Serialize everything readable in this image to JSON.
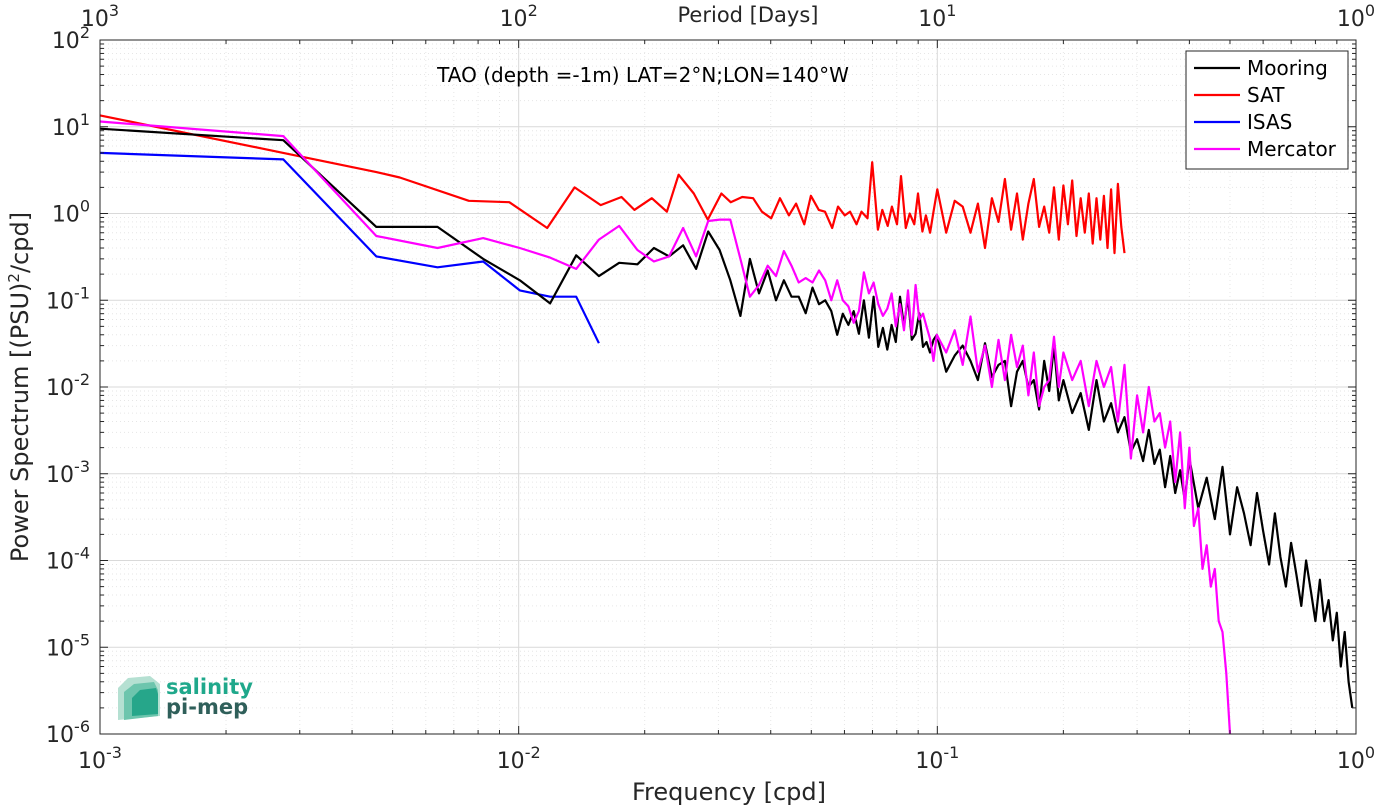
{
  "chart_data": {
    "type": "line",
    "title": "TAO (depth =-1m) LAT=2°N;LON=140°W",
    "xlabel": "Frequency [cpd]",
    "ylabel_main": "Power Spectrum [(PSU)",
    "ylabel_sup": "2",
    "ylabel_tail": "/cpd]",
    "top_xlabel": "Period [Days]",
    "x_scale": "log",
    "y_scale": "log",
    "xlim": [
      0.001,
      1
    ],
    "ylim": [
      1e-06,
      100
    ],
    "grid": true,
    "legend_position": "top-right",
    "x_ticks": [
      {
        "value": 0.001,
        "base": "10",
        "exp": "-3"
      },
      {
        "value": 0.01,
        "base": "10",
        "exp": "-2"
      },
      {
        "value": 0.1,
        "base": "10",
        "exp": "-1"
      },
      {
        "value": 1,
        "base": "10",
        "exp": "0"
      }
    ],
    "y_ticks": [
      {
        "value": 1e-06,
        "base": "10",
        "exp": "-6"
      },
      {
        "value": 1e-05,
        "base": "10",
        "exp": "-5"
      },
      {
        "value": 0.0001,
        "base": "10",
        "exp": "-4"
      },
      {
        "value": 0.001,
        "base": "10",
        "exp": "-3"
      },
      {
        "value": 0.01,
        "base": "10",
        "exp": "-2"
      },
      {
        "value": 0.1,
        "base": "10",
        "exp": "-1"
      },
      {
        "value": 1,
        "base": "10",
        "exp": "0"
      },
      {
        "value": 10,
        "base": "10",
        "exp": "1"
      },
      {
        "value": 100,
        "base": "10",
        "exp": "2"
      }
    ],
    "top_ticks": [
      {
        "value": 0.001,
        "base": "10",
        "exp": "3"
      },
      {
        "value": 0.01,
        "base": "10",
        "exp": "2"
      },
      {
        "value": 0.1,
        "base": "10",
        "exp": "1"
      },
      {
        "value": 1,
        "base": "10",
        "exp": "0"
      }
    ],
    "series": [
      {
        "name": "Mooring",
        "color": "#000000",
        "x": [
          0.001,
          0.00274,
          0.00457,
          0.0064,
          0.00823,
          0.01006,
          0.01189,
          0.01372,
          0.01555,
          0.01738,
          0.01921,
          0.02104,
          0.02287,
          0.0247,
          0.02653,
          0.02836,
          0.03019,
          0.03202,
          0.03385,
          0.03568,
          0.03751,
          0.03934,
          0.04117,
          0.043,
          0.04483,
          0.04666,
          0.04849,
          0.05032,
          0.05215,
          0.05398,
          0.05581,
          0.05764,
          0.05947,
          0.0613,
          0.06313,
          0.06496,
          0.06679,
          0.06862,
          0.07045,
          0.07228,
          0.07411,
          0.07594,
          0.07777,
          0.0796,
          0.08143,
          0.08326,
          0.08509,
          0.08692,
          0.08875,
          0.09058,
          0.09241,
          0.09424,
          0.09607,
          0.0979,
          0.09973,
          0.105,
          0.11,
          0.115,
          0.12,
          0.125,
          0.13,
          0.135,
          0.14,
          0.145,
          0.15,
          0.155,
          0.16,
          0.165,
          0.17,
          0.175,
          0.18,
          0.185,
          0.19,
          0.195,
          0.2,
          0.21,
          0.22,
          0.23,
          0.24,
          0.25,
          0.26,
          0.27,
          0.28,
          0.29,
          0.3,
          0.31,
          0.32,
          0.33,
          0.34,
          0.35,
          0.36,
          0.37,
          0.38,
          0.39,
          0.4,
          0.42,
          0.44,
          0.46,
          0.48,
          0.5,
          0.52,
          0.54,
          0.56,
          0.58,
          0.6,
          0.62,
          0.64,
          0.66,
          0.68,
          0.7,
          0.72,
          0.74,
          0.76,
          0.78,
          0.8,
          0.82,
          0.84,
          0.86,
          0.88,
          0.9,
          0.92,
          0.94,
          0.96,
          0.98
        ],
        "y": [
          9.5,
          7.0,
          0.7,
          0.7,
          0.3,
          0.17,
          0.092,
          0.33,
          0.19,
          0.27,
          0.26,
          0.4,
          0.32,
          0.43,
          0.23,
          0.62,
          0.38,
          0.17,
          0.066,
          0.3,
          0.12,
          0.22,
          0.1,
          0.17,
          0.11,
          0.11,
          0.071,
          0.14,
          0.09,
          0.1,
          0.075,
          0.04,
          0.07,
          0.052,
          0.075,
          0.041,
          0.1,
          0.037,
          0.11,
          0.029,
          0.048,
          0.027,
          0.052,
          0.033,
          0.11,
          0.05,
          0.11,
          0.035,
          0.041,
          0.071,
          0.029,
          0.033,
          0.025,
          0.035,
          0.04,
          0.015,
          0.023,
          0.03,
          0.02,
          0.012,
          0.032,
          0.013,
          0.018,
          0.02,
          0.006,
          0.015,
          0.02,
          0.01,
          0.012,
          0.0055,
          0.02,
          0.009,
          0.03,
          0.007,
          0.012,
          0.005,
          0.0085,
          0.0032,
          0.012,
          0.004,
          0.0065,
          0.003,
          0.0045,
          0.0018,
          0.0025,
          0.0014,
          0.0032,
          0.0013,
          0.0019,
          0.0007,
          0.0016,
          0.0006,
          0.0011,
          0.0005,
          0.0015,
          0.0004,
          0.0009,
          0.0003,
          0.0012,
          0.0002,
          0.0007,
          0.00035,
          0.00015,
          0.0006,
          0.00022,
          9e-05,
          0.00035,
          0.00011,
          5e-05,
          0.00016,
          7e-05,
          3e-05,
          0.0001,
          4.5e-05,
          2e-05,
          6e-05,
          2e-05,
          3.5e-05,
          1.2e-05,
          2.5e-05,
          6e-06,
          1.5e-05,
          4e-06,
          2e-06
        ]
      },
      {
        "name": "SAT",
        "color": "#ff0000",
        "x": [
          0.001,
          0.00274,
          0.00457,
          0.0052,
          0.0076,
          0.0095,
          0.0117,
          0.0136,
          0.0157,
          0.0176,
          0.0189,
          0.0208,
          0.0226,
          0.0241,
          0.0262,
          0.0283,
          0.0305,
          0.0321,
          0.0342,
          0.0363,
          0.0381,
          0.0401,
          0.0421,
          0.0442,
          0.046,
          0.0481,
          0.0499,
          0.0521,
          0.0539,
          0.0561,
          0.0579,
          0.0601,
          0.0619,
          0.0641,
          0.0659,
          0.0681,
          0.0699,
          0.0721,
          0.0739,
          0.0761,
          0.0779,
          0.0801,
          0.0819,
          0.0841,
          0.0859,
          0.0881,
          0.0899,
          0.0921,
          0.0939,
          0.0961,
          0.0979,
          0.1,
          0.105,
          0.11,
          0.115,
          0.12,
          0.125,
          0.13,
          0.135,
          0.14,
          0.145,
          0.15,
          0.155,
          0.16,
          0.165,
          0.17,
          0.175,
          0.18,
          0.185,
          0.19,
          0.195,
          0.2,
          0.205,
          0.21,
          0.215,
          0.22,
          0.225,
          0.23,
          0.235,
          0.24,
          0.245,
          0.25,
          0.255,
          0.26,
          0.265,
          0.27,
          0.275,
          0.28
        ],
        "y": [
          13.5,
          5.0,
          3.0,
          2.6,
          1.4,
          1.35,
          0.68,
          2.0,
          1.25,
          1.55,
          1.1,
          1.5,
          1.05,
          2.8,
          1.7,
          0.85,
          1.7,
          1.35,
          1.55,
          1.5,
          1.05,
          0.88,
          1.5,
          0.95,
          1.3,
          0.75,
          1.6,
          1.1,
          1.05,
          0.68,
          1.2,
          0.95,
          1.05,
          0.75,
          1.05,
          0.88,
          3.9,
          0.65,
          1.1,
          0.72,
          1.2,
          0.75,
          2.7,
          0.68,
          1.0,
          0.75,
          1.7,
          0.62,
          0.95,
          0.6,
          1.05,
          1.9,
          0.6,
          1.4,
          1.2,
          0.6,
          1.3,
          0.4,
          1.5,
          0.8,
          2.5,
          0.65,
          1.7,
          0.5,
          1.3,
          2.5,
          0.7,
          1.2,
          0.6,
          2.0,
          0.5,
          2.1,
          0.75,
          2.4,
          0.55,
          1.5,
          0.6,
          1.7,
          0.45,
          1.5,
          0.5,
          1.6,
          0.4,
          1.9,
          0.35,
          2.2,
          0.7,
          0.35
        ]
      },
      {
        "name": "ISAS",
        "color": "#0000ff",
        "x": [
          0.001,
          0.00274,
          0.00457,
          0.0064,
          0.00823,
          0.01006,
          0.01189,
          0.01372,
          0.01555
        ],
        "y": [
          5.0,
          4.2,
          0.32,
          0.24,
          0.28,
          0.13,
          0.11,
          0.11,
          0.032
        ]
      },
      {
        "name": "Mercator",
        "color": "#ff00ff",
        "x": [
          0.001,
          0.00274,
          0.00457,
          0.0064,
          0.00823,
          0.01006,
          0.01189,
          0.01372,
          0.01555,
          0.01738,
          0.01921,
          0.02104,
          0.02287,
          0.0247,
          0.02653,
          0.02836,
          0.03019,
          0.03202,
          0.03385,
          0.03568,
          0.03751,
          0.03934,
          0.04117,
          0.043,
          0.04483,
          0.04666,
          0.04849,
          0.05032,
          0.05215,
          0.05398,
          0.05581,
          0.05764,
          0.05947,
          0.0613,
          0.06313,
          0.06496,
          0.06679,
          0.06862,
          0.07045,
          0.07228,
          0.07411,
          0.07594,
          0.07777,
          0.0796,
          0.08143,
          0.08326,
          0.08509,
          0.08692,
          0.08875,
          0.09058,
          0.09241,
          0.09424,
          0.09607,
          0.0979,
          0.09973,
          0.105,
          0.11,
          0.115,
          0.12,
          0.125,
          0.13,
          0.135,
          0.14,
          0.145,
          0.15,
          0.155,
          0.16,
          0.165,
          0.17,
          0.175,
          0.18,
          0.185,
          0.19,
          0.195,
          0.2,
          0.21,
          0.22,
          0.23,
          0.24,
          0.25,
          0.26,
          0.27,
          0.28,
          0.29,
          0.3,
          0.31,
          0.32,
          0.33,
          0.34,
          0.35,
          0.36,
          0.37,
          0.38,
          0.39,
          0.4,
          0.41,
          0.42,
          0.43,
          0.44,
          0.45,
          0.46,
          0.47,
          0.48,
          0.49,
          0.5
        ],
        "y": [
          11.5,
          7.8,
          0.55,
          0.4,
          0.52,
          0.4,
          0.31,
          0.23,
          0.5,
          0.72,
          0.38,
          0.28,
          0.32,
          0.68,
          0.32,
          0.82,
          0.85,
          0.85,
          0.3,
          0.11,
          0.15,
          0.25,
          0.19,
          0.37,
          0.25,
          0.16,
          0.18,
          0.16,
          0.22,
          0.17,
          0.1,
          0.17,
          0.1,
          0.085,
          0.055,
          0.075,
          0.21,
          0.12,
          0.16,
          0.09,
          0.066,
          0.08,
          0.12,
          0.05,
          0.09,
          0.045,
          0.13,
          0.04,
          0.15,
          0.06,
          0.07,
          0.05,
          0.036,
          0.02,
          0.04,
          0.025,
          0.045,
          0.018,
          0.065,
          0.015,
          0.03,
          0.01,
          0.035,
          0.012,
          0.04,
          0.017,
          0.03,
          0.008,
          0.025,
          0.006,
          0.01,
          0.012,
          0.038,
          0.01,
          0.025,
          0.012,
          0.02,
          0.006,
          0.02,
          0.01,
          0.017,
          0.004,
          0.018,
          0.0015,
          0.008,
          0.003,
          0.01,
          0.004,
          0.005,
          0.002,
          0.004,
          0.0008,
          0.003,
          0.0004,
          0.002,
          0.00025,
          0.0004,
          8e-05,
          0.00015,
          5e-05,
          8e-05,
          2e-05,
          1.5e-05,
          5e-06,
          1e-06
        ]
      }
    ]
  },
  "logo": {
    "line1": "salinity",
    "line2": "pi-mep"
  }
}
